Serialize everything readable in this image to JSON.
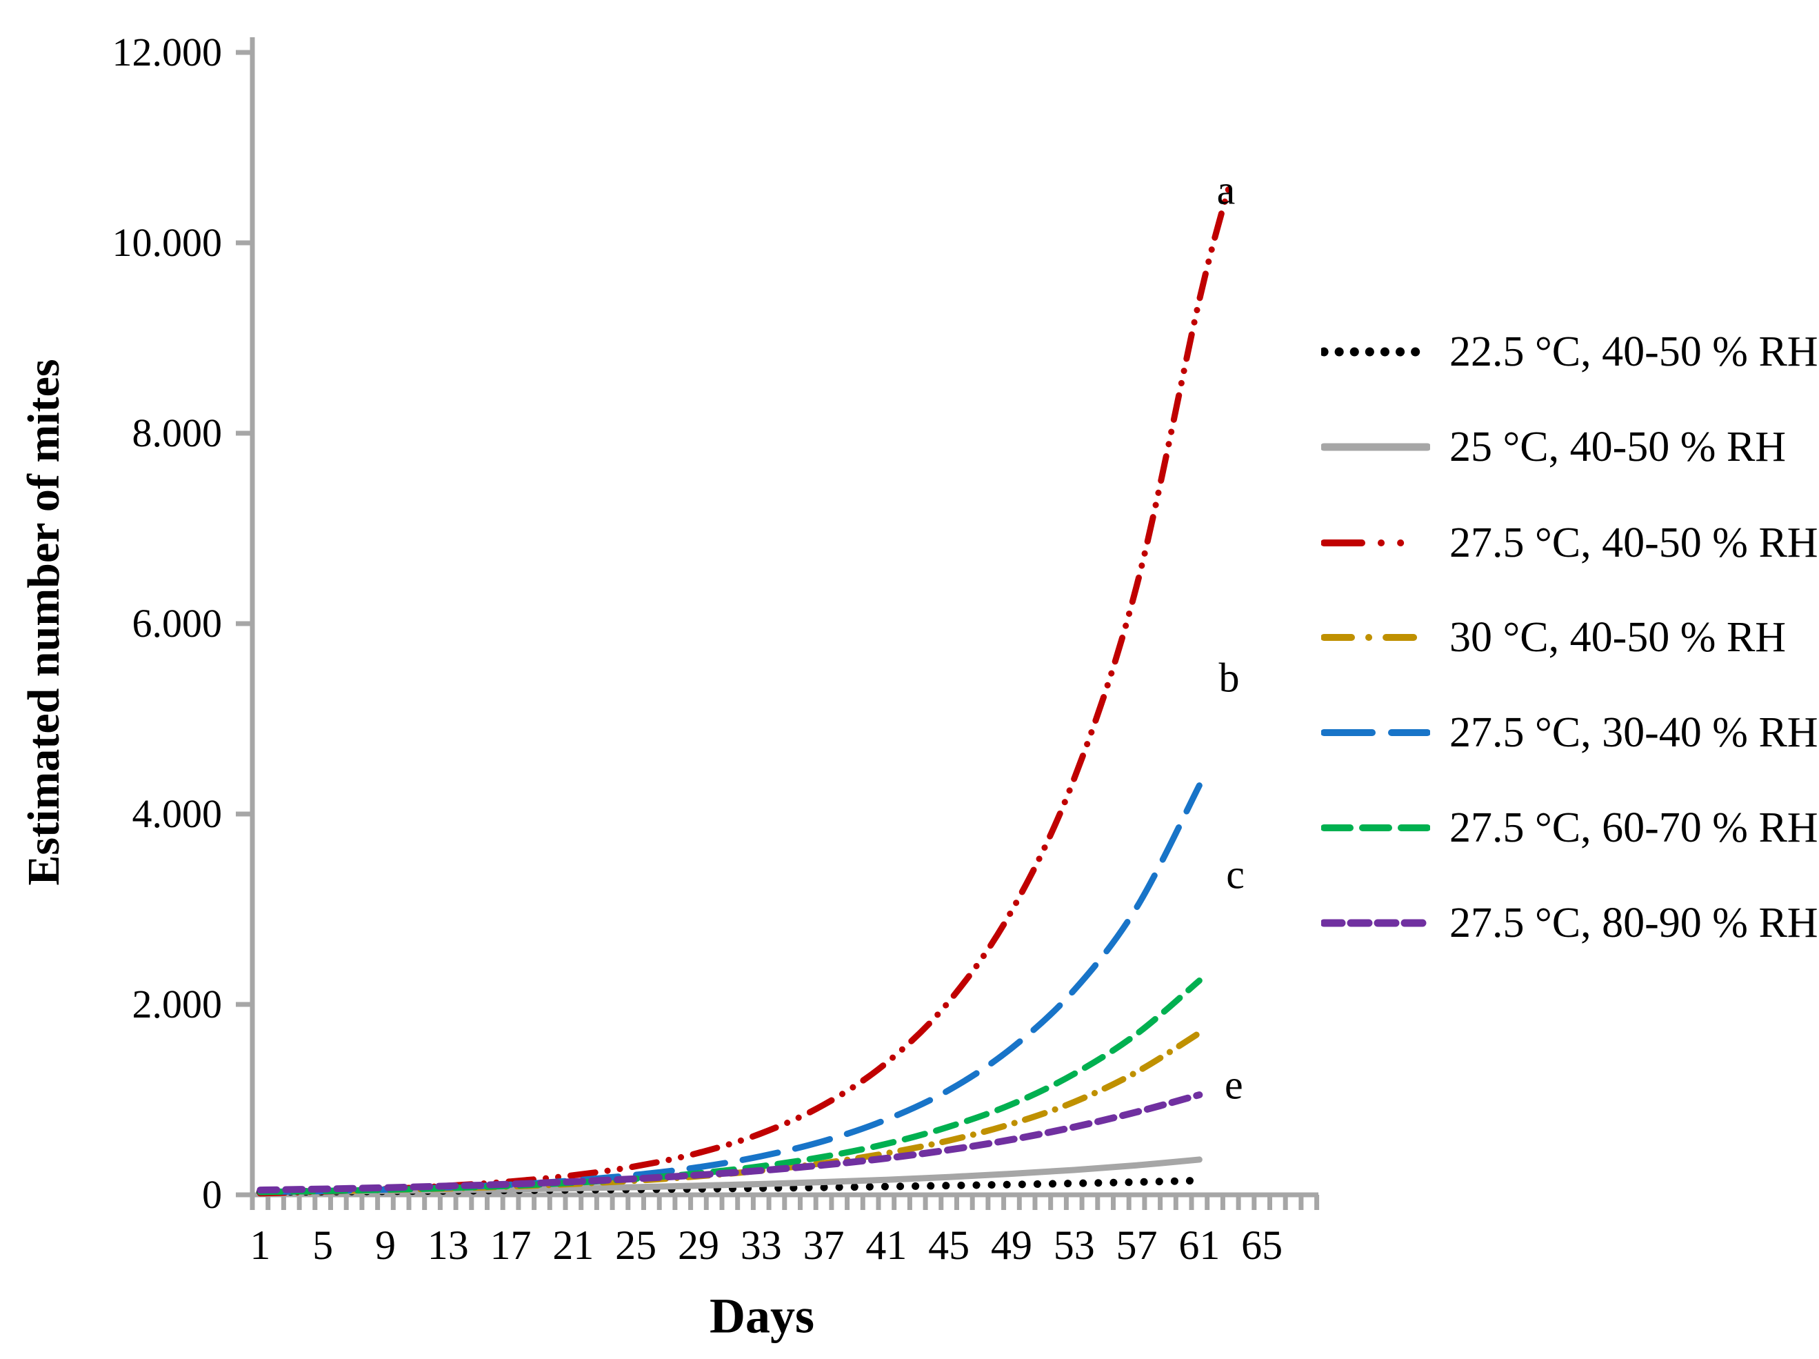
{
  "chart_data": {
    "type": "line",
    "title": "",
    "xlabel": "Days",
    "ylabel": "Estimated number of mites",
    "x_tick_days": [
      1,
      5,
      9,
      13,
      17,
      21,
      25,
      29,
      33,
      37,
      41,
      45,
      49,
      53,
      57,
      61,
      65
    ],
    "y_tick_labels": [
      "0",
      "2.000",
      "4.000",
      "6.000",
      "8.000",
      "10.000",
      "12.000"
    ],
    "y_tick_step": 2000,
    "ylim": [
      0,
      12000
    ],
    "xlim_days": [
      0.5,
      68.5
    ],
    "grid": false,
    "legend_position": "right",
    "axis_color": "#A6A6A6",
    "text_color": "#000000",
    "series": [
      {
        "name": "22.5 °C, 40-50 % RH",
        "color": "#000000",
        "style": "dotted",
        "days": [
          1,
          5,
          9,
          13,
          17,
          21,
          25,
          29,
          33,
          37,
          41,
          45,
          49,
          53,
          57,
          61
        ],
        "values": [
          30,
          33,
          37,
          41,
          46,
          51,
          57,
          63,
          70,
          78,
          87,
          97,
          108,
          120,
          134,
          150
        ]
      },
      {
        "name": "25 °C, 40-50 % RH",
        "color": "#A6A6A6",
        "style": "solid",
        "days": [
          1,
          5,
          9,
          13,
          17,
          21,
          25,
          29,
          33,
          37,
          41,
          45,
          49,
          53,
          57,
          61
        ],
        "values": [
          30,
          35,
          42,
          49,
          58,
          69,
          81,
          96,
          113,
          134,
          158,
          187,
          221,
          261,
          310,
          370
        ]
      },
      {
        "name": "27.5 °C, 40-50 % RH",
        "color": "#C00000",
        "style": "dash-dot-dot",
        "days": [
          1,
          5,
          9,
          13,
          17,
          21,
          25,
          29,
          33,
          37,
          41,
          45,
          49,
          53,
          57,
          61,
          63
        ],
        "values": [
          15,
          35,
          60,
          95,
          140,
          205,
          300,
          440,
          645,
          945,
          1385,
          2030,
          2980,
          4370,
          6400,
          9400,
          10650
        ]
      },
      {
        "name": "30 °C, 40-50 % RH",
        "color": "#BF9000",
        "style": "dash-dot",
        "days": [
          1,
          5,
          9,
          13,
          17,
          21,
          25,
          29,
          33,
          37,
          41,
          45,
          49,
          53,
          57,
          61
        ],
        "values": [
          30,
          39,
          51,
          67,
          87,
          114,
          149,
          195,
          255,
          333,
          436,
          570,
          745,
          975,
          1290,
          1700
        ]
      },
      {
        "name": "27.5 °C, 30-40 % RH",
        "color": "#1874C8",
        "style": "long-dash",
        "days": [
          1,
          5,
          9,
          13,
          17,
          21,
          25,
          29,
          33,
          37,
          41,
          45,
          49,
          53,
          57,
          61
        ],
        "values": [
          30,
          40,
          55,
          77,
          107,
          150,
          210,
          290,
          405,
          565,
          790,
          1100,
          1540,
          2150,
          3020,
          4300
        ]
      },
      {
        "name": "27.5 °C, 60-70 % RH",
        "color": "#00B050",
        "style": "dash",
        "days": [
          1,
          5,
          9,
          13,
          17,
          21,
          25,
          29,
          33,
          37,
          41,
          45,
          49,
          53,
          57,
          61
        ],
        "values": [
          30,
          40,
          53,
          71,
          95,
          127,
          169,
          226,
          300,
          400,
          535,
          715,
          950,
          1270,
          1690,
          2250
        ]
      },
      {
        "name": "27.5 °C, 80-90 % RH",
        "color": "#7030A0",
        "style": "short-dash",
        "days": [
          1,
          5,
          9,
          13,
          17,
          21,
          25,
          29,
          33,
          37,
          41,
          45,
          49,
          53,
          57,
          61
        ],
        "values": [
          50,
          61,
          75,
          92,
          112,
          138,
          169,
          208,
          255,
          313,
          384,
          472,
          580,
          712,
          870,
          1050
        ]
      }
    ],
    "annotations": [
      {
        "text": "a",
        "day": 62.7,
        "value": 10550
      },
      {
        "text": "b",
        "day": 62.9,
        "value": 5430
      },
      {
        "text": "c",
        "day": 63.3,
        "value": 3360
      },
      {
        "text": "e",
        "day": 63.2,
        "value": 1150
      }
    ]
  },
  "legend": {
    "items": [
      "22.5 °C, 40-50 % RH",
      "25 °C, 40-50 % RH",
      "27.5 °C, 40-50 % RH",
      "30 °C, 40-50 % RH",
      "27.5 °C, 30-40 % RH",
      "27.5 °C, 60-70 % RH",
      "27.5 °C, 80-90 % RH"
    ]
  }
}
